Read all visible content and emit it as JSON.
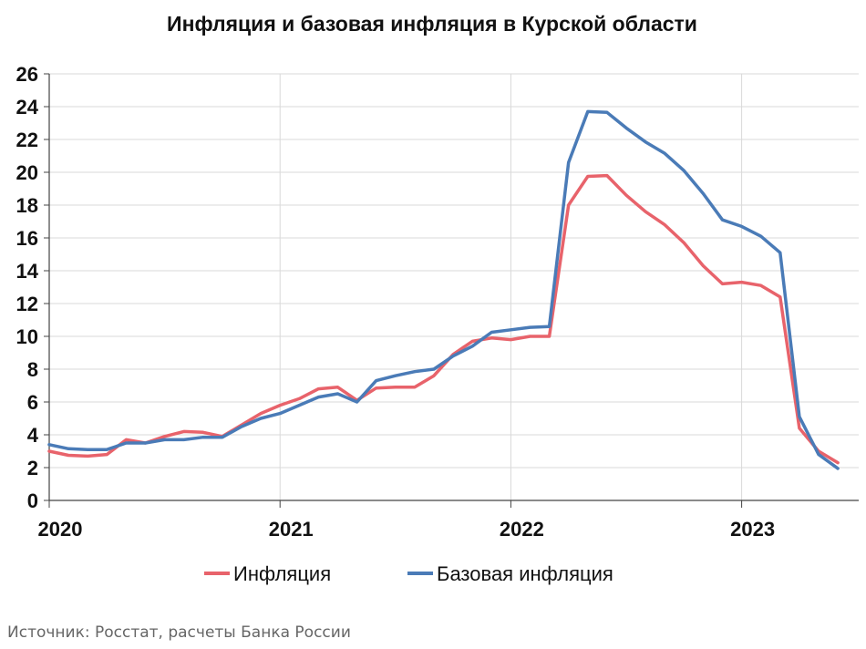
{
  "chart_data": {
    "type": "line",
    "title": "Инфляция и базовая инфляция в Курской области",
    "xlabel": "",
    "ylabel": "",
    "ylim": [
      0,
      26
    ],
    "yticks": [
      0,
      2,
      4,
      6,
      8,
      10,
      12,
      14,
      16,
      18,
      20,
      22,
      24,
      26
    ],
    "xlim": [
      "2020-01",
      "2023-06"
    ],
    "xtick_labels": [
      "2020",
      "2021",
      "2022",
      "2023"
    ],
    "grid": true,
    "legend_position": "bottom",
    "x": [
      "2020-01",
      "2020-02",
      "2020-03",
      "2020-04",
      "2020-05",
      "2020-06",
      "2020-07",
      "2020-08",
      "2020-09",
      "2020-10",
      "2020-11",
      "2020-12",
      "2021-01",
      "2021-02",
      "2021-03",
      "2021-04",
      "2021-05",
      "2021-06",
      "2021-07",
      "2021-08",
      "2021-09",
      "2021-10",
      "2021-11",
      "2021-12",
      "2022-01",
      "2022-02",
      "2022-03",
      "2022-04",
      "2022-05",
      "2022-06",
      "2022-07",
      "2022-08",
      "2022-09",
      "2022-10",
      "2022-11",
      "2022-12",
      "2023-01",
      "2023-02",
      "2023-03",
      "2023-04",
      "2023-05",
      "2023-06"
    ],
    "series": [
      {
        "name": "Инфляция",
        "color": "#e8636b",
        "values": [
          3.0,
          2.75,
          2.7,
          2.8,
          3.7,
          3.5,
          3.9,
          4.2,
          4.15,
          3.9,
          4.6,
          5.3,
          5.8,
          6.2,
          6.8,
          6.9,
          6.1,
          6.85,
          6.9,
          6.9,
          7.6,
          8.9,
          9.7,
          9.9,
          9.8,
          10.0,
          10.0,
          18.0,
          19.75,
          19.8,
          18.6,
          17.6,
          16.8,
          15.7,
          14.3,
          13.2,
          13.3,
          13.1,
          12.4,
          4.4,
          3.0,
          2.3
        ]
      },
      {
        "name": "Базовая инфляция",
        "color": "#4a7bb7",
        "values": [
          3.4,
          3.15,
          3.1,
          3.1,
          3.5,
          3.5,
          3.7,
          3.7,
          3.85,
          3.85,
          4.5,
          5.0,
          5.3,
          5.8,
          6.3,
          6.5,
          6.0,
          7.3,
          7.6,
          7.85,
          8.0,
          8.8,
          9.4,
          10.25,
          10.4,
          10.55,
          10.6,
          20.6,
          23.7,
          23.65,
          22.7,
          21.85,
          21.15,
          20.1,
          18.7,
          17.1,
          16.7,
          16.1,
          15.1,
          5.1,
          2.8,
          1.95
        ]
      }
    ]
  },
  "footer": {
    "source": "Источник: Росстат, расчеты Банка России"
  }
}
